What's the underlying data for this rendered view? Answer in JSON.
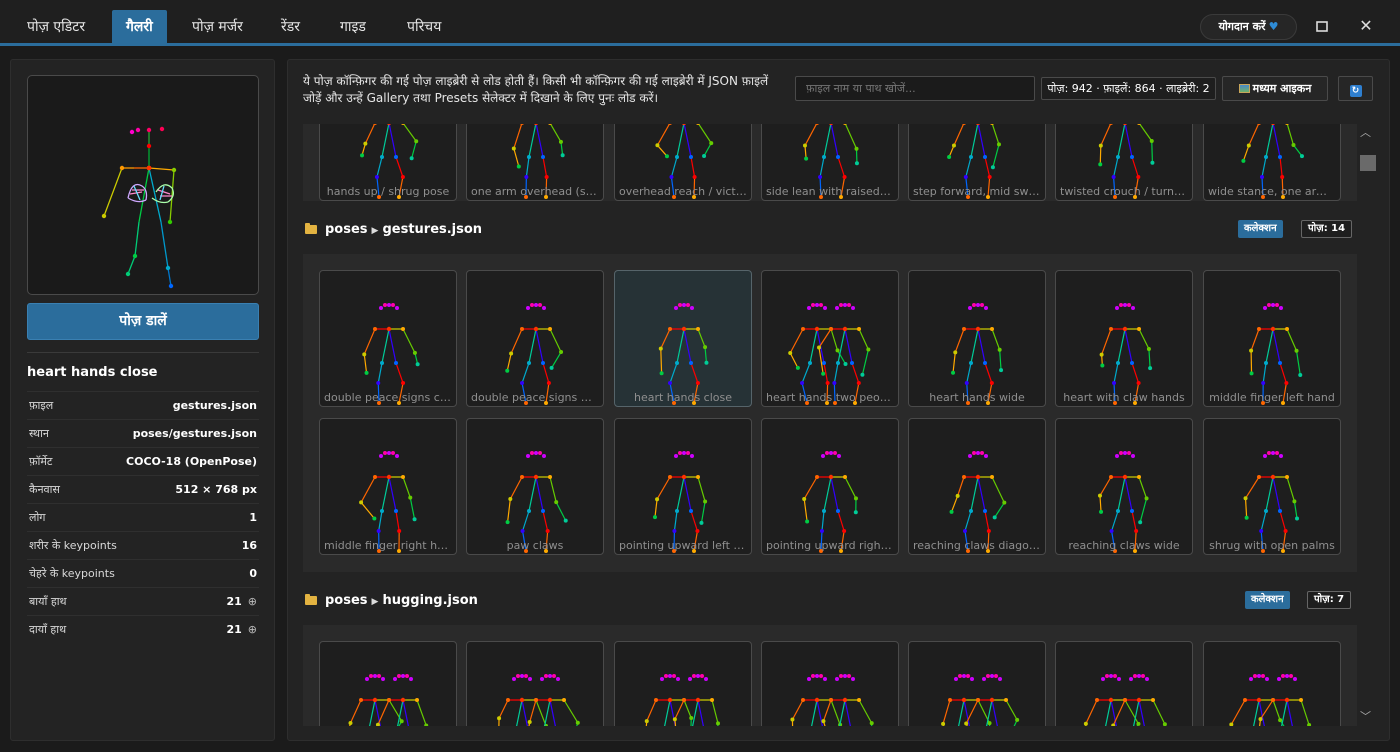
{
  "tabs": [
    {
      "label": "पोज़ एडिटर"
    },
    {
      "label": "गैलरी"
    },
    {
      "label": "पोज़ मर्जर"
    },
    {
      "label": "रेंडर"
    },
    {
      "label": "गाइड"
    },
    {
      "label": "परिचय"
    }
  ],
  "header": {
    "contribute_label": "योगदान करें",
    "heart_icon": "♥",
    "maximize_icon": "□",
    "close_icon": "✕"
  },
  "left": {
    "load_button": "पोज़ डालें",
    "pose_name": "heart hands close",
    "info": [
      {
        "key": "फ़ाइल",
        "value": "gestures.json"
      },
      {
        "key": "स्थान",
        "value": "poses/gestures.json"
      },
      {
        "key": "फ़ॉर्मेट",
        "value": "COCO-18 (OpenPose)"
      },
      {
        "key": "कैनवास",
        "value": "512 × 768 px"
      },
      {
        "key": "लोग",
        "value": "1"
      },
      {
        "key": "शरीर के keypoints",
        "value": "16"
      },
      {
        "key": "चेहरे के keypoints",
        "value": "0"
      },
      {
        "key": "बायाँ हाथ",
        "value": "21"
      },
      {
        "key": "दायाँ हाथ",
        "value": "21"
      }
    ],
    "zoom_icon": "⊕"
  },
  "main": {
    "description": "ये पोज़ कॉन्फ़िगर की गई पोज़ लाइब्रेरी से लोड होती हैं। किसी भी कॉन्फ़िगर की गई लाइब्रेरी में JSON फ़ाइलें जोड़ें और उन्हें Gallery तथा Presets सेलेक्टर में दिखाने के लिए पुनः लोड करें।",
    "search_placeholder": "फ़ाइल नाम या पाथ खोजें...",
    "stats": "पोज़: 942 · फ़ाइलें: 864 · लाइब्रेरी: 2",
    "icon_size_label": "मध्यम आइकन",
    "refresh_icon": "↻"
  },
  "top_group": {
    "labels": [
      "hands up / shrug pose",
      "one arm overhead (str...",
      "overhead reach / victor...",
      "side lean with raised leg",
      "step forward, mid swin...",
      "twisted crouch / turned ...",
      "wide stance, one arm e..."
    ]
  },
  "sections": [
    {
      "folder": "poses",
      "file": "gestures.json",
      "badge": "कलेक्शन",
      "count": "पोज़: 14",
      "cards": [
        "double peace signs close",
        "double peace signs wide",
        "heart hands close",
        "heart hands two people",
        "heart hands wide",
        "heart with claw hands",
        "middle finger left hand",
        "middle finger right hand",
        "paw claws",
        "pointing upward left hand",
        "pointing upward right h...",
        "reaching claws diagonal",
        "reaching claws wide",
        "shrug with open palms"
      ]
    },
    {
      "folder": "poses",
      "file": "hugging.json",
      "badge": "कलेक्शन",
      "count": "पोज़: 7",
      "cards": [
        "",
        "",
        "",
        "",
        "",
        "",
        ""
      ]
    }
  ],
  "colors": {
    "accent": "#2b6d9c",
    "background": "#1b1b1b",
    "panel": "#232323"
  }
}
